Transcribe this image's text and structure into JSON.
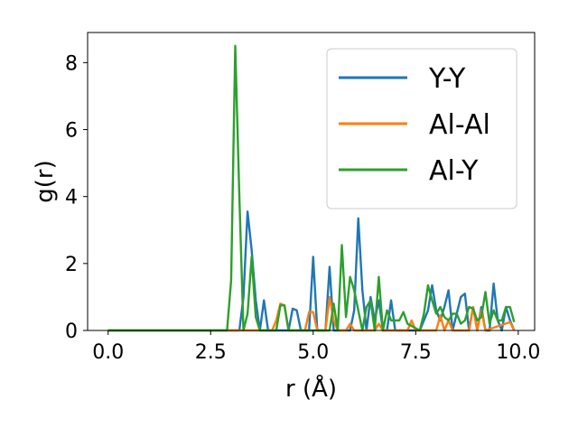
{
  "chart_data": {
    "type": "line",
    "title": "",
    "xlabel": "r (Å)",
    "ylabel": "g(r)",
    "xlim": [
      -0.5,
      10.4
    ],
    "ylim": [
      0,
      8.9
    ],
    "xticks": [
      0.0,
      2.5,
      5.0,
      7.5,
      10.0
    ],
    "xtick_labels": [
      "0.0",
      "2.5",
      "5.0",
      "7.5",
      "10.0"
    ],
    "yticks": [
      0,
      2,
      4,
      6,
      8
    ],
    "ytick_labels": [
      "0",
      "2",
      "4",
      "6",
      "8"
    ],
    "grid": false,
    "legend": {
      "placement": "top-right"
    },
    "series": [
      {
        "name": "Y-Y",
        "color": "#1f77b4",
        "x": [
          0.0,
          2.9,
          3.1,
          3.2,
          3.3,
          3.4,
          3.5,
          3.6,
          3.7,
          3.8,
          3.9,
          4.0,
          4.4,
          4.5,
          4.6,
          4.7,
          4.9,
          5.0,
          5.1,
          5.3,
          5.4,
          5.5,
          5.7,
          5.8,
          5.9,
          6.0,
          6.1,
          6.2,
          6.3,
          6.4,
          6.5,
          6.6,
          6.7,
          6.8,
          6.9,
          7.0,
          7.4,
          7.5,
          7.6,
          7.7,
          7.8,
          7.9,
          8.0,
          8.1,
          8.2,
          8.3,
          8.4,
          8.5,
          8.6,
          8.7,
          8.8,
          8.9,
          9.0,
          9.1,
          9.2,
          9.3,
          9.4,
          9.5,
          9.6,
          9.7,
          9.8,
          9.9
        ],
        "values": [
          0,
          0,
          0,
          0,
          1.0,
          3.55,
          2.4,
          0.9,
          0,
          0.9,
          0,
          0,
          0,
          0.65,
          0.6,
          0,
          0,
          2.2,
          0,
          0,
          1.9,
          0,
          0,
          0,
          0,
          0.6,
          3.35,
          1.2,
          0,
          1.0,
          0.3,
          0.9,
          0,
          0,
          0.9,
          0,
          0,
          0,
          0,
          0.3,
          0.6,
          1.35,
          0.6,
          0.3,
          0.7,
          1.2,
          0,
          0.5,
          1.0,
          1.1,
          0,
          0.7,
          0,
          0.7,
          0,
          0,
          1.4,
          0.3,
          0,
          0.7,
          0.3,
          0
        ]
      },
      {
        "name": "Al-Al",
        "color": "#ff7f0e",
        "x": [
          0.0,
          3.9,
          4.0,
          4.1,
          4.2,
          4.3,
          4.4,
          4.5,
          4.8,
          4.9,
          5.0,
          5.1,
          5.3,
          5.4,
          5.5,
          5.6,
          5.8,
          5.9,
          6.0,
          6.5,
          6.6,
          6.7,
          7.3,
          7.4,
          7.5,
          8.0,
          8.1,
          8.2,
          8.3,
          8.4,
          8.8,
          8.9,
          9.0,
          9.1,
          9.2,
          9.8,
          9.9
        ],
        "values": [
          0,
          0,
          0,
          0.3,
          0.8,
          0.75,
          0,
          0,
          0,
          0.55,
          0.55,
          0,
          0,
          1.0,
          0.3,
          0,
          0,
          0.2,
          0,
          0,
          0.2,
          0,
          0,
          0.3,
          0,
          0,
          0.45,
          0,
          0.3,
          0,
          0,
          0.7,
          0,
          0.6,
          0,
          0.25,
          0
        ]
      },
      {
        "name": "Al-Y",
        "color": "#2ca02c",
        "x": [
          0.0,
          2.9,
          3.0,
          3.1,
          3.2,
          3.3,
          3.4,
          3.5,
          3.6,
          3.7,
          3.8,
          4.1,
          4.2,
          4.3,
          4.4,
          5.4,
          5.5,
          5.6,
          5.7,
          5.8,
          5.9,
          6.0,
          6.1,
          6.2,
          6.3,
          6.4,
          6.5,
          6.6,
          6.7,
          6.8,
          6.9,
          7.0,
          7.1,
          7.2,
          7.3,
          7.6,
          7.7,
          7.8,
          7.9,
          8.0,
          8.1,
          8.2,
          8.3,
          8.4,
          8.5,
          8.6,
          8.7,
          8.8,
          8.9,
          9.0,
          9.1,
          9.2,
          9.3,
          9.4,
          9.5,
          9.6,
          9.7,
          9.8,
          9.9
        ],
        "values": [
          0,
          0,
          1.5,
          8.5,
          4.0,
          0,
          0.5,
          2.2,
          0.4,
          0,
          0,
          0,
          0.75,
          0.75,
          0,
          0,
          0.8,
          0,
          2.55,
          0.4,
          1.6,
          1.2,
          0.6,
          0,
          0.7,
          0.9,
          0,
          1.6,
          0,
          0.6,
          0.3,
          0.3,
          0.3,
          0.55,
          0.2,
          0,
          0.5,
          1.35,
          0.9,
          0.5,
          0.7,
          0.4,
          0.3,
          0.5,
          0.5,
          0.2,
          0.3,
          0.7,
          0.65,
          0.3,
          0.4,
          1.15,
          0.2,
          0.6,
          0.3,
          0.3,
          0.7,
          0.7,
          0.25
        ]
      }
    ]
  }
}
